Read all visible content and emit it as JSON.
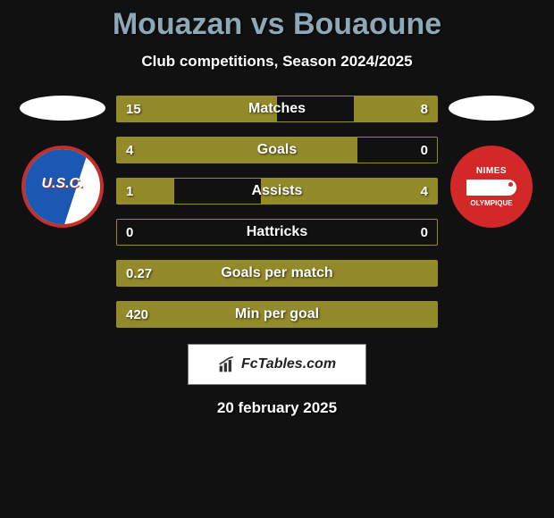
{
  "title": "Mouazan vs Bouaoune",
  "subtitle": "Club competitions, Season 2024/2025",
  "date": "20 february 2025",
  "watermark": "FcTables.com",
  "colors": {
    "background": "#111111",
    "bar_fill": "#938a2a",
    "bar_border": "#938a2a",
    "title_color": "#8da9b8",
    "text_color": "#ffffff"
  },
  "left_club": {
    "badge_text": "U.S.C.",
    "primary": "#1b58b3",
    "secondary": "#c2302b"
  },
  "right_club": {
    "top_text": "NIMES",
    "bottom_text": "OLYMPIQUE",
    "primary": "#d32828"
  },
  "bars": [
    {
      "label": "Matches",
      "left_val": "15",
      "right_val": "8",
      "left_pct": 50,
      "right_pct": 26
    },
    {
      "label": "Goals",
      "left_val": "4",
      "right_val": "0",
      "left_pct": 75,
      "right_pct": 0
    },
    {
      "label": "Assists",
      "left_val": "1",
      "right_val": "4",
      "left_pct": 18,
      "right_pct": 55
    },
    {
      "label": "Hattricks",
      "left_val": "0",
      "right_val": "0",
      "left_pct": 0,
      "right_pct": 0
    },
    {
      "label": "Goals per match",
      "left_val": "0.27",
      "right_val": "",
      "left_pct": 100,
      "right_pct": 0
    },
    {
      "label": "Min per goal",
      "left_val": "420",
      "right_val": "",
      "left_pct": 100,
      "right_pct": 0
    }
  ]
}
